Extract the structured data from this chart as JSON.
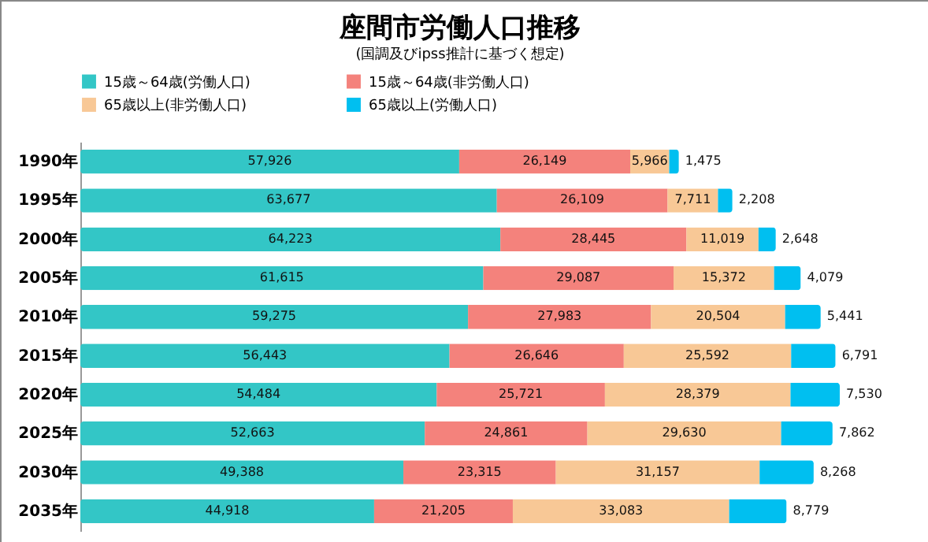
{
  "chart_data": {
    "type": "bar",
    "orientation": "horizontal",
    "stacked": true,
    "legend": "top",
    "title": "座間市労働人口推移",
    "subtitle": "(国調及びipss推計に基づく想定)",
    "categories": [
      "1990年",
      "1995年",
      "2000年",
      "2005年",
      "2010年",
      "2015年",
      "2020年",
      "2025年",
      "2030年",
      "2035年"
    ],
    "series": [
      {
        "name": "15歳～64歳(労働人口)",
        "color": "#33c6c6",
        "values": [
          57926,
          63677,
          64223,
          61615,
          59275,
          56443,
          54484,
          52663,
          49388,
          44918
        ],
        "value_labels": [
          "57,926",
          "63,677",
          "64,223",
          "61,615",
          "59,275",
          "56,443",
          "54,484",
          "52,663",
          "49,388",
          "44,918"
        ]
      },
      {
        "name": "15歳～64歳(非労働人口)",
        "color": "#f4827c",
        "values": [
          26149,
          26109,
          28445,
          29087,
          27983,
          26646,
          25721,
          24861,
          23315,
          21205
        ],
        "value_labels": [
          "26,149",
          "26,109",
          "28,445",
          "29,087",
          "27,983",
          "26,646",
          "25,721",
          "24,861",
          "23,315",
          "21,205"
        ]
      },
      {
        "name": "65歳以上(非労働人口)",
        "color": "#f8c896",
        "values": [
          5966,
          7711,
          11019,
          15372,
          20504,
          25592,
          28379,
          29630,
          31157,
          33083
        ],
        "value_labels": [
          "5,966",
          "7,711",
          "11,019",
          "15,372",
          "20,504",
          "25,592",
          "28,379",
          "29,630",
          "31,157",
          "33,083"
        ]
      },
      {
        "name": "65歳以上(労働人口)",
        "color": "#00bff0",
        "values": [
          1475,
          2208,
          2648,
          4079,
          5441,
          6791,
          7530,
          7862,
          8268,
          8779
        ],
        "value_labels": [
          "1,475",
          "2,208",
          "2,648",
          "4,079",
          "5,441",
          "6,791",
          "7,530",
          "7,862",
          "8,268",
          "8,779"
        ]
      }
    ]
  }
}
